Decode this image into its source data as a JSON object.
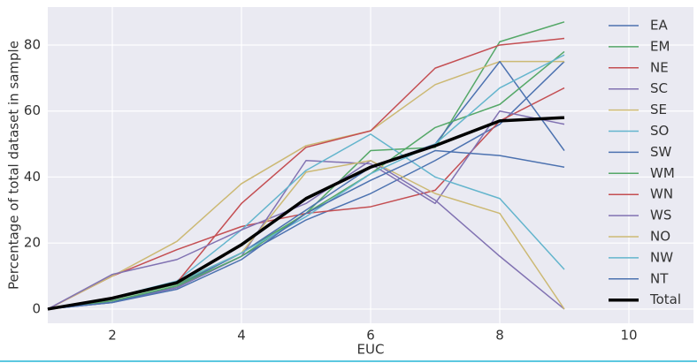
{
  "chart_data": {
    "type": "line",
    "x_label": "EUC",
    "y_label": "Percentage of total dataset in sample",
    "x": [
      1,
      2,
      3,
      4,
      5,
      6,
      7,
      8,
      9
    ],
    "xlim": [
      1,
      11
    ],
    "xticks": [
      2,
      4,
      6,
      8,
      10
    ],
    "ylim": [
      -4.3,
      91.5
    ],
    "yticks": [
      0,
      20,
      40,
      60,
      80
    ],
    "grid": true,
    "legend": "right",
    "series": [
      {
        "name": "EA",
        "color": "#4c72b0",
        "values": [
          0,
          2.5,
          6.5,
          16,
          27,
          35,
          45,
          56,
          75
        ]
      },
      {
        "name": "EM",
        "color": "#55a868",
        "values": [
          0,
          3,
          7.5,
          17,
          29,
          48,
          49,
          81,
          87
        ]
      },
      {
        "name": "NE",
        "color": "#c44e52",
        "values": [
          0,
          10,
          18,
          25,
          29,
          31,
          36,
          57,
          67
        ]
      },
      {
        "name": "SC",
        "color": "#8172b2",
        "values": [
          0,
          2,
          6.5,
          16,
          45,
          44,
          32,
          60,
          56
        ]
      },
      {
        "name": "SE",
        "color": "#ccb974",
        "values": [
          0,
          10,
          20.5,
          38,
          49.5,
          54,
          68,
          75,
          75
        ]
      },
      {
        "name": "SO",
        "color": "#64b5cd",
        "values": [
          0,
          3.5,
          8.5,
          24,
          42,
          53,
          40,
          33.5,
          12
        ]
      },
      {
        "name": "SW",
        "color": "#4c72b0",
        "values": [
          0,
          2,
          7,
          17,
          30,
          43,
          50,
          75,
          48
        ]
      },
      {
        "name": "WM",
        "color": "#55a868",
        "values": [
          0,
          2.5,
          7,
          16,
          29,
          41,
          55,
          62,
          78
        ]
      },
      {
        "name": "WN",
        "color": "#c44e52",
        "values": [
          0,
          3,
          8,
          32,
          49,
          54,
          73,
          80,
          82
        ]
      },
      {
        "name": "WS",
        "color": "#8172b2",
        "values": [
          0,
          10.5,
          15,
          24,
          32,
          45,
          33,
          16,
          0
        ]
      },
      {
        "name": "NO",
        "color": "#ccb974",
        "values": [
          0,
          3,
          8,
          17,
          41.5,
          45,
          35,
          29,
          0
        ]
      },
      {
        "name": "NW",
        "color": "#64b5cd",
        "values": [
          0,
          3,
          8,
          17,
          28,
          41,
          50,
          67,
          77
        ]
      },
      {
        "name": "NT",
        "color": "#4c72b0",
        "values": [
          0,
          2,
          6,
          15,
          29,
          39,
          48,
          46.5,
          43
        ]
      },
      {
        "name": "Total",
        "color": "#000000",
        "values": [
          0,
          3.3,
          8,
          19.5,
          33.5,
          43,
          49.5,
          57,
          58
        ]
      }
    ]
  }
}
